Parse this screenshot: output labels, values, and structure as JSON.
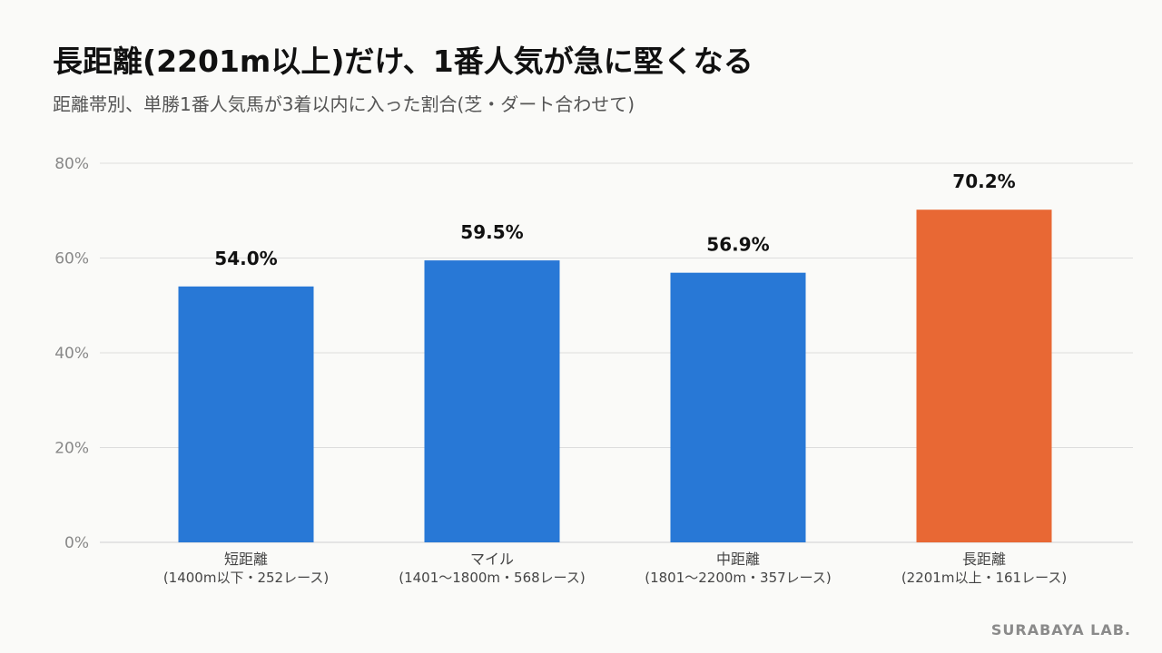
{
  "title": "長距離(2201m以上)だけ、1番人気が急に堅くなる",
  "subtitle": "距離帯別、単勝1番人気馬が3着以内に入った割合(芝・ダート合わせて)",
  "watermark": "SURABAYA LAB.",
  "colors": {
    "default_bar": "#2878d6",
    "highlight_bar": "#e86834",
    "grid": "#dddddd",
    "tick_text": "#888888",
    "category_text": "#444444",
    "value_text": "#111111"
  },
  "chart_data": {
    "type": "bar",
    "categories": [
      [
        "短距離",
        "(1400m以下・252レース)"
      ],
      [
        "マイル",
        "(1401〜1800m・568レース)"
      ],
      [
        "中距離",
        "(1801〜2200m・357レース)"
      ],
      [
        "長距離",
        "(2201m以上・161レース)"
      ]
    ],
    "values": [
      54.0,
      59.5,
      56.9,
      70.2
    ],
    "value_labels": [
      "54.0%",
      "59.5%",
      "56.9%",
      "70.2%"
    ],
    "highlight_index": 3,
    "ylim": [
      0,
      80
    ],
    "yticks": [
      0,
      20,
      40,
      60,
      80
    ],
    "ytick_labels": [
      "0%",
      "20%",
      "40%",
      "60%",
      "80%"
    ],
    "grid": true,
    "xlabel": "",
    "ylabel": ""
  }
}
